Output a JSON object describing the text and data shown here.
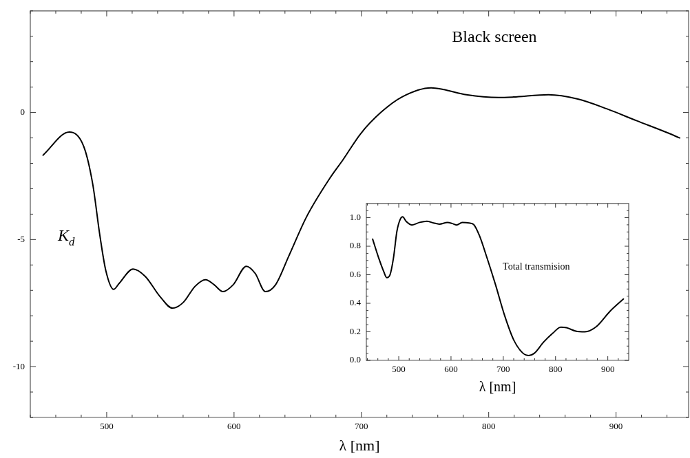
{
  "chart_data": [
    {
      "type": "line",
      "title": "Black screen",
      "xlabel": "λ [nm]",
      "ylabel": "K$_{d}$",
      "legend": false,
      "grid": false,
      "marker": "none",
      "xlim": [
        440,
        957
      ],
      "ylim": [
        -12,
        4
      ],
      "xticks": [
        {
          "value": 440,
          "label": null
        },
        {
          "value": 460,
          "label": null
        },
        {
          "value": 480,
          "label": null
        },
        500,
        {
          "value": 520,
          "label": null
        },
        {
          "value": 540,
          "label": null
        },
        {
          "value": 560,
          "label": null
        },
        {
          "value": 580,
          "label": null
        },
        600,
        {
          "value": 620,
          "label": null
        },
        {
          "value": 640,
          "label": null
        },
        {
          "value": 660,
          "label": null
        },
        {
          "value": 680,
          "label": null
        },
        700,
        {
          "value": 720,
          "label": null
        },
        {
          "value": 740,
          "label": null
        },
        {
          "value": 760,
          "label": null
        },
        {
          "value": 780,
          "label": null
        },
        800,
        {
          "value": 820,
          "label": null
        },
        {
          "value": 840,
          "label": null
        },
        {
          "value": 860,
          "label": null
        },
        {
          "value": 880,
          "label": null
        },
        900,
        {
          "value": 920,
          "label": null
        },
        {
          "value": 940,
          "label": null
        }
      ],
      "yticks": [
        {
          "value": -12,
          "label": null
        },
        {
          "value": -11,
          "label": null
        },
        -10,
        {
          "value": -9,
          "label": null
        },
        {
          "value": -8,
          "label": null
        },
        {
          "value": -7,
          "label": null
        },
        {
          "value": -6,
          "label": null
        },
        -5,
        {
          "value": -4,
          "label": null
        },
        {
          "value": -3,
          "label": null
        },
        {
          "value": -2,
          "label": null
        },
        {
          "value": -1,
          "label": null
        },
        0,
        {
          "value": 1,
          "label": null
        },
        {
          "value": 2,
          "label": null
        },
        {
          "value": 3,
          "label": null
        },
        {
          "value": 4,
          "label": null
        }
      ],
      "series": [
        {
          "color": "#000000",
          "x": [
            450,
            470.6,
            482,
            489,
            494.7,
            499.3,
            505.5,
            509.7,
            520.7,
            530.3,
            541.8,
            551.7,
            560.2,
            569.4,
            577.7,
            584.4,
            591.3,
            599.3,
            609.7,
            616.6,
            624.6,
            632.6,
            643,
            656.8,
            675.2,
            685.7,
            699.5,
            715.7,
            731.8,
            754.8,
            764,
            782.5,
            807.8,
            819.4,
            847,
            870,
            893,
            916,
            939,
            950
          ],
          "values": [
            -1.68,
            -0.77,
            -1.34,
            -2.81,
            -4.86,
            -6.22,
            -6.96,
            -6.73,
            -6.16,
            -6.45,
            -7.24,
            -7.7,
            -7.47,
            -6.84,
            -6.58,
            -6.78,
            -7.05,
            -6.78,
            -6.05,
            -6.33,
            -7.05,
            -6.78,
            -5.65,
            -4.12,
            -2.59,
            -1.85,
            -0.83,
            0.02,
            0.61,
            0.97,
            0.91,
            0.7,
            0.59,
            0.61,
            0.7,
            0.53,
            0.14,
            -0.32,
            -0.77,
            -1.0
          ]
        }
      ]
    },
    {
      "type": "line",
      "xlabel": "λ [nm]",
      "legend": false,
      "grid": false,
      "marker": "none",
      "annotations": [
        "Total transmision"
      ],
      "xlim": [
        438,
        940
      ],
      "ylim": [
        0,
        1.1
      ],
      "xticks": [
        {
          "value": 440,
          "label": null
        },
        {
          "value": 460,
          "label": null
        },
        {
          "value": 480,
          "label": null
        },
        500,
        {
          "value": 520,
          "label": null
        },
        {
          "value": 540,
          "label": null
        },
        {
          "value": 560,
          "label": null
        },
        {
          "value": 580,
          "label": null
        },
        600,
        {
          "value": 620,
          "label": null
        },
        {
          "value": 640,
          "label": null
        },
        {
          "value": 660,
          "label": null
        },
        {
          "value": 680,
          "label": null
        },
        700,
        {
          "value": 720,
          "label": null
        },
        {
          "value": 740,
          "label": null
        },
        {
          "value": 760,
          "label": null
        },
        {
          "value": 780,
          "label": null
        },
        800,
        {
          "value": 820,
          "label": null
        },
        {
          "value": 840,
          "label": null
        },
        {
          "value": 860,
          "label": null
        },
        {
          "value": 880,
          "label": null
        },
        900,
        {
          "value": 920,
          "label": null
        }
      ],
      "yticks": [
        {
          "value": 0,
          "label": "0.0"
        },
        {
          "value": 0.05,
          "label": null
        },
        {
          "value": 0.1,
          "label": null
        },
        {
          "value": 0.15,
          "label": null
        },
        0.2,
        {
          "value": 0.25,
          "label": null
        },
        {
          "value": 0.3,
          "label": null
        },
        {
          "value": 0.35,
          "label": null
        },
        0.4,
        {
          "value": 0.45,
          "label": null
        },
        {
          "value": 0.5,
          "label": null
        },
        {
          "value": 0.55,
          "label": null
        },
        0.6,
        {
          "value": 0.65,
          "label": null
        },
        {
          "value": 0.7,
          "label": null
        },
        {
          "value": 0.75,
          "label": null
        },
        0.8,
        {
          "value": 0.85,
          "label": null
        },
        {
          "value": 0.9,
          "label": null
        },
        {
          "value": 0.95,
          "label": null
        },
        {
          "value": 1,
          "label": "1.0"
        },
        {
          "value": 1.05,
          "label": null
        }
      ],
      "series": [
        {
          "color": "#000000",
          "x": [
            450,
            461.4,
            471,
            477,
            483.3,
            490,
            496.5,
            503,
            507.5,
            514,
            525,
            540,
            553.5,
            566.7,
            577.6,
            593,
            601.8,
            610.5,
            621.5,
            634.6,
            643.4,
            654.4,
            667.5,
            685,
            702.6,
            720,
            737.7,
            748.7,
            759.6,
            777.2,
            794.7,
            810,
            821,
            838.6,
            856,
            878,
            904.4,
            929.8
          ],
          "values": [
            0.85,
            0.72,
            0.625,
            0.58,
            0.6,
            0.72,
            0.905,
            0.99,
            1.006,
            0.975,
            0.949,
            0.967,
            0.975,
            0.963,
            0.955,
            0.966,
            0.96,
            0.949,
            0.966,
            0.963,
            0.952,
            0.874,
            0.734,
            0.532,
            0.314,
            0.143,
            0.05,
            0.034,
            0.05,
            0.128,
            0.19,
            0.233,
            0.229,
            0.205,
            0.2,
            0.236,
            0.345,
            0.43
          ]
        }
      ]
    }
  ]
}
